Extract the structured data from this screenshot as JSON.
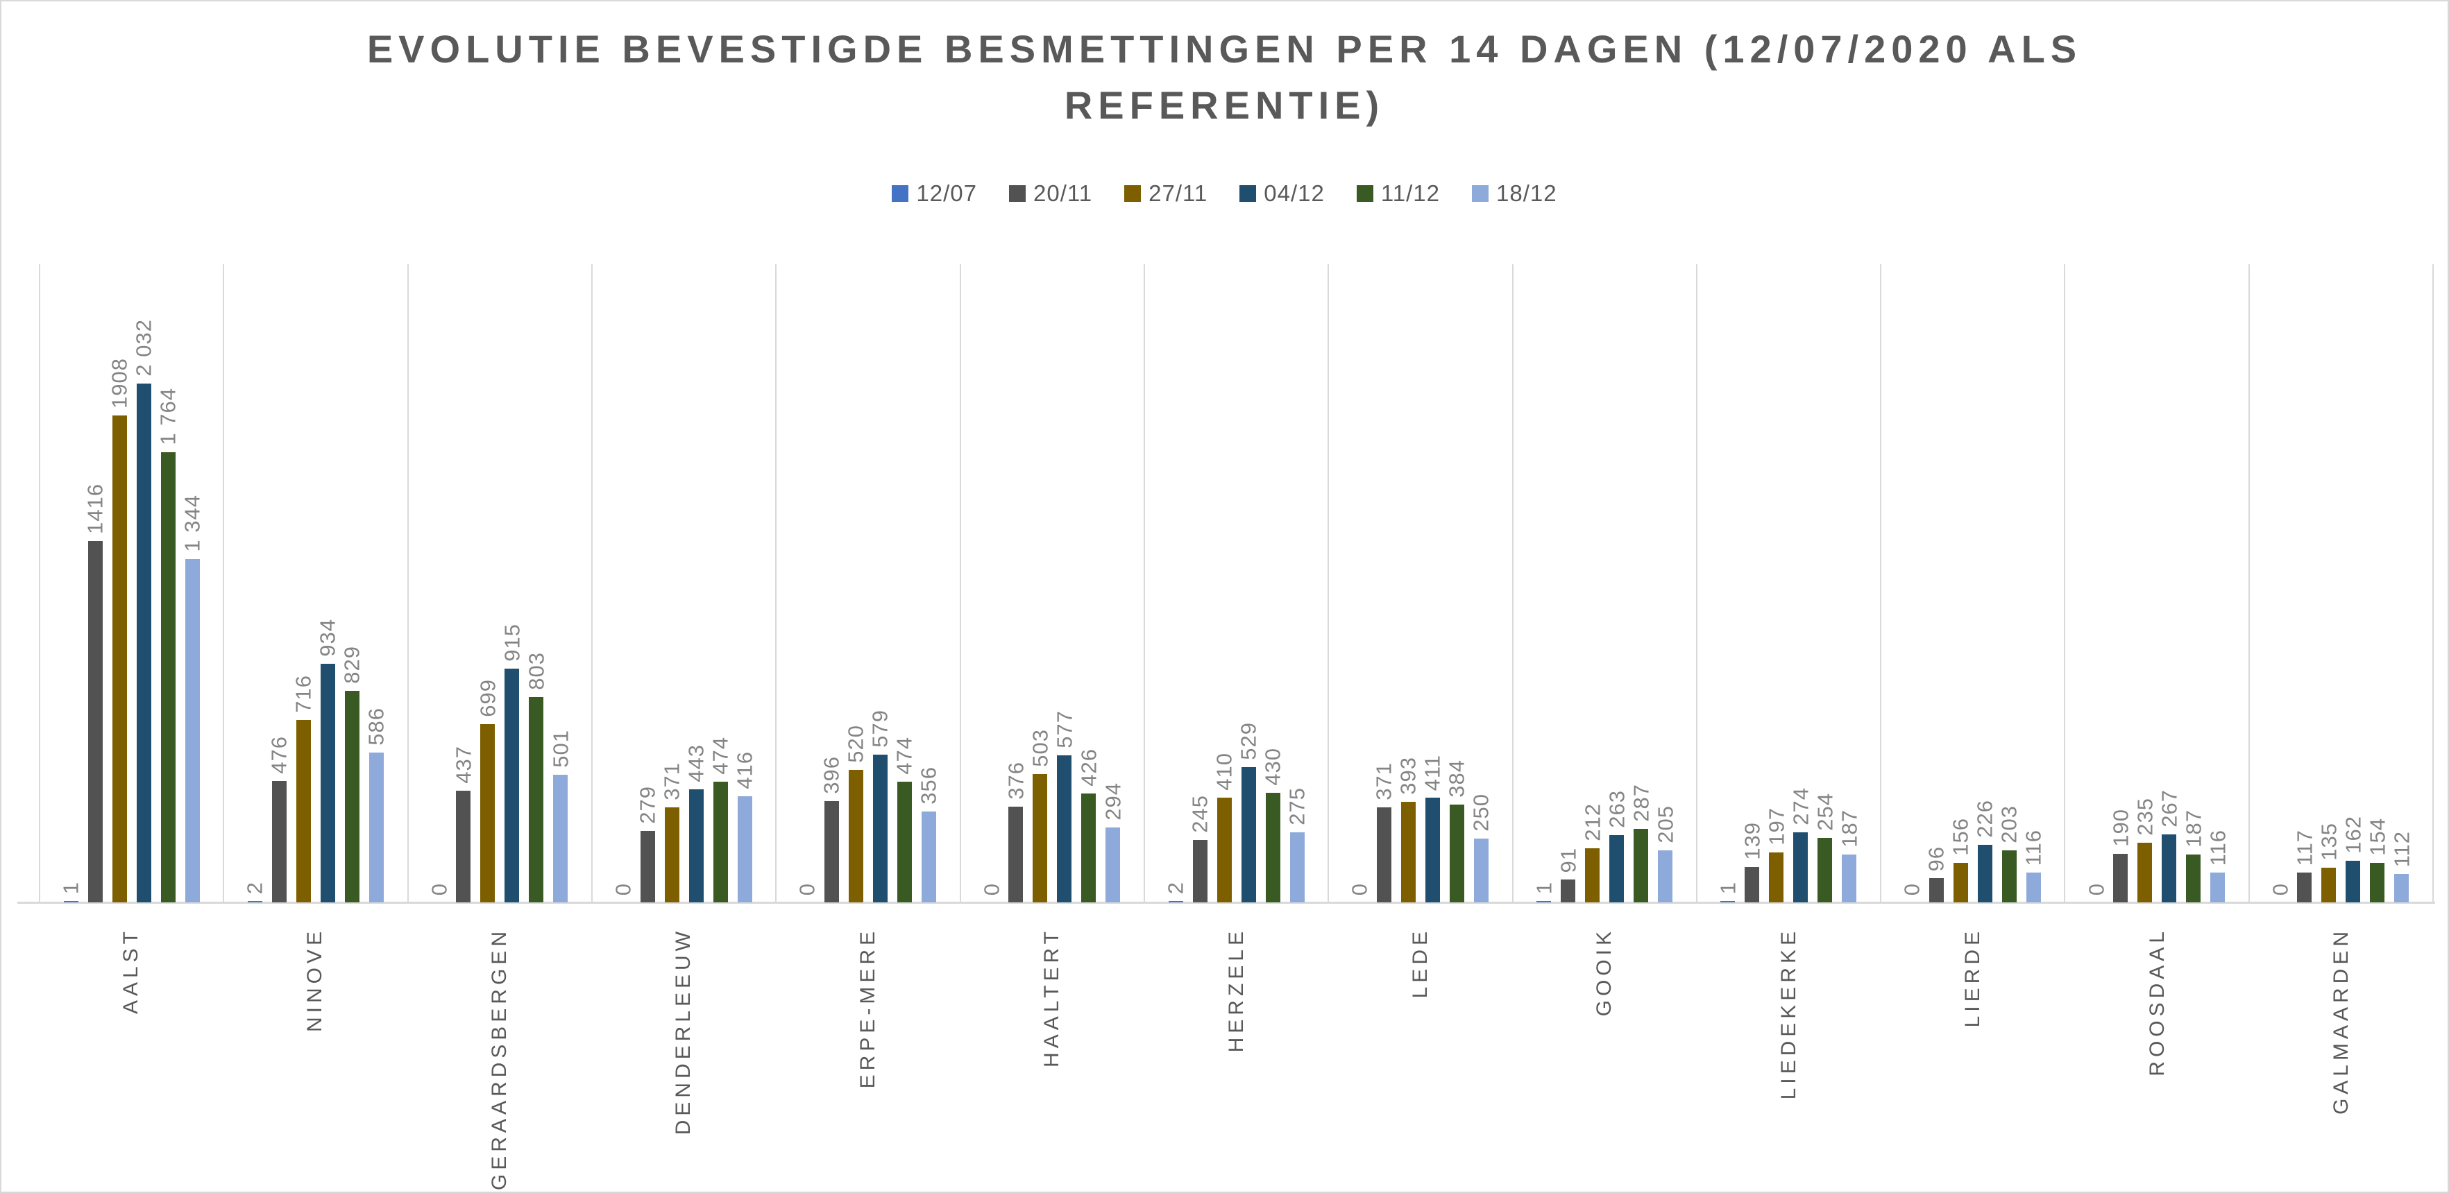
{
  "title_lines": {
    "0": "EVOLUTIE BEVESTIGDE BESMETTINGEN PER 14 DAGEN (12/07/2020 ALS",
    "1": "REFERENTIE)"
  },
  "colors": {
    "title": "#595959",
    "legend_text": "#595959",
    "value_label": "#848484",
    "category_label": "#595959",
    "gridline": "#D9D9D9",
    "axis_line": "#D9D9D9",
    "background": "#FFFFFF"
  },
  "chart_data": {
    "type": "bar",
    "title": "EVOLUTIE BEVESTIGDE BESMETTINGEN PER 14 DAGEN (12/07/2020 ALS REFERENTIE)",
    "legend_position": "top",
    "grid": "vertical category separators only",
    "value_label_rotation": -90,
    "category_label_rotation": -90,
    "ylim": [
      0,
      2500
    ],
    "categories": [
      "AALST",
      "NINOVE",
      "GERAARDSBERGEN",
      "DENDERLEEUW",
      "ERPE-MERE",
      "HAALTERT",
      "HERZELE",
      "LEDE",
      "GOOIK",
      "LIEDEKERKE",
      "LIERDE",
      "ROOSDAAL",
      "GALMAARDEN"
    ],
    "series": [
      {
        "name": "12/07",
        "color": "#4472C4",
        "values": [
          1,
          2,
          0,
          0,
          0,
          0,
          2,
          0,
          1,
          1,
          0,
          0,
          0
        ],
        "labels": [
          "1",
          "2",
          "0",
          "0",
          "0",
          "0",
          "2",
          "0",
          "1",
          "1",
          "0",
          "0",
          "0"
        ]
      },
      {
        "name": "20/11",
        "color": "#525252",
        "values": [
          1416,
          476,
          437,
          279,
          396,
          376,
          245,
          371,
          91,
          139,
          96,
          190,
          117
        ],
        "labels": [
          "1416",
          "476",
          "437",
          "279",
          "396",
          "376",
          "245",
          "371",
          "91",
          "139",
          "96",
          "190",
          "117"
        ]
      },
      {
        "name": "27/11",
        "color": "#7E5F00",
        "values": [
          1908,
          716,
          699,
          371,
          520,
          503,
          410,
          393,
          212,
          197,
          156,
          235,
          135
        ],
        "labels": [
          "1908",
          "716",
          "699",
          "371",
          "520",
          "503",
          "410",
          "393",
          "212",
          "197",
          "156",
          "235",
          "135"
        ]
      },
      {
        "name": "04/12",
        "color": "#1F4E6E",
        "values": [
          2032,
          934,
          915,
          443,
          579,
          577,
          529,
          411,
          263,
          274,
          226,
          267,
          162
        ],
        "labels": [
          "2 032",
          "934",
          "915",
          "443",
          "579",
          "577",
          "529",
          "411",
          "263",
          "274",
          "226",
          "267",
          "162"
        ]
      },
      {
        "name": "11/12",
        "color": "#3A5A23",
        "values": [
          1764,
          829,
          803,
          474,
          474,
          426,
          430,
          384,
          287,
          254,
          203,
          187,
          154
        ],
        "labels": [
          "1 764",
          "829",
          "803",
          "474",
          "474",
          "426",
          "430",
          "384",
          "287",
          "254",
          "203",
          "187",
          "154"
        ]
      },
      {
        "name": "18/12",
        "color": "#8EAADB",
        "values": [
          1344,
          586,
          501,
          416,
          356,
          294,
          275,
          250,
          205,
          187,
          116,
          116,
          112
        ],
        "labels": [
          "1 344",
          "586",
          "501",
          "416",
          "356",
          "294",
          "275",
          "250",
          "205",
          "187",
          "116",
          "116",
          "112"
        ]
      }
    ]
  }
}
